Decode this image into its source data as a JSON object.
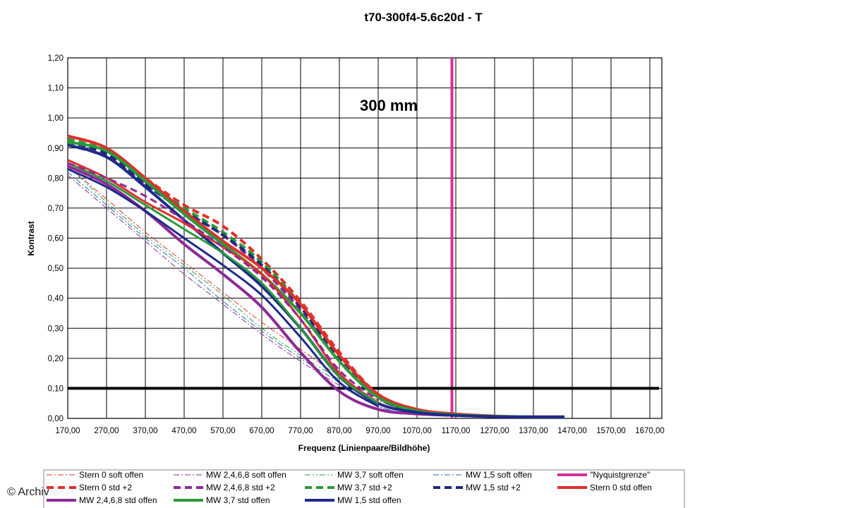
{
  "credit": "© Archiv",
  "chart_data": {
    "type": "line",
    "title": "t70-300f4-5.6c20d - T",
    "xlabel": "Frequenz (Linienpaare/Bildhöhe)",
    "ylabel": "Kontrast",
    "annotation": "300 mm",
    "xlim": [
      170,
      1700
    ],
    "ylim": [
      0,
      1.2
    ],
    "grid": true,
    "legend_position": "bottom",
    "x_ticks": [
      "170,00",
      "270,00",
      "370,00",
      "470,00",
      "570,00",
      "670,00",
      "770,00",
      "870,00",
      "970,00",
      "1070,00",
      "1170,00",
      "1270,00",
      "1370,00",
      "1470,00",
      "1570,00",
      "1670,00"
    ],
    "y_ticks": [
      "0,00",
      "0,10",
      "0,20",
      "0,30",
      "0,40",
      "0,50",
      "0,60",
      "0,70",
      "0,80",
      "0,90",
      "1,00",
      "1,10",
      "1,20"
    ],
    "reference_lines": [
      {
        "name": "\"Nyquistgrenze\"",
        "orientation": "vertical",
        "x": 1160,
        "color": "#d6309a"
      },
      {
        "name": "threshold",
        "orientation": "horizontal",
        "y": 0.1,
        "color": "#000000"
      }
    ],
    "series": [
      {
        "name": "Stern 0 soft offen",
        "color": "#e0302a",
        "style": "dashdot",
        "width": 1,
        "x": [
          170,
          270,
          370,
          470,
          570,
          670,
          770,
          870,
          970,
          1070,
          1170
        ],
        "y": [
          0.84,
          0.73,
          0.62,
          0.52,
          0.42,
          0.32,
          0.23,
          0.14,
          0.06,
          0.02,
          0.01
        ]
      },
      {
        "name": "MW 2,4,6,8 soft offen",
        "color": "#8e2a96",
        "style": "dashdot",
        "width": 1,
        "x": [
          170,
          270,
          370,
          470,
          570,
          670,
          770,
          870,
          970,
          1070
        ],
        "y": [
          0.81,
          0.7,
          0.59,
          0.48,
          0.38,
          0.28,
          0.19,
          0.11,
          0.04,
          0.01
        ]
      },
      {
        "name": "MW 3,7 soft offen",
        "color": "#2a9a3a",
        "style": "dashdot2",
        "width": 1,
        "x": [
          170,
          270,
          370,
          470,
          570,
          670,
          770,
          870,
          970,
          1070
        ],
        "y": [
          0.84,
          0.72,
          0.61,
          0.51,
          0.41,
          0.3,
          0.21,
          0.13,
          0.05,
          0.02
        ]
      },
      {
        "name": "MW 1,5 soft offen",
        "color": "#2a6ab0",
        "style": "dashdot",
        "width": 1,
        "x": [
          170,
          270,
          370,
          470,
          570,
          670,
          770,
          870,
          970,
          1070
        ],
        "y": [
          0.82,
          0.71,
          0.6,
          0.5,
          0.39,
          0.29,
          0.2,
          0.12,
          0.04,
          0.01
        ]
      },
      {
        "name": "\"Nyquistgrenze\"",
        "color": "#d6309a",
        "style": "solid",
        "width": 4,
        "legend_only": true,
        "x": [],
        "y": []
      },
      {
        "name": "Stern 0 std +2",
        "color": "#e0302a",
        "style": "dash",
        "width": 4,
        "x": [
          170,
          270,
          370,
          470,
          570,
          670,
          770,
          870,
          970,
          1070,
          1170
        ],
        "y": [
          0.94,
          0.9,
          0.8,
          0.71,
          0.64,
          0.53,
          0.39,
          0.22,
          0.08,
          0.03,
          0.01
        ]
      },
      {
        "name": "MW 2,4,6,8 std +2",
        "color": "#8e2a96",
        "style": "dash",
        "width": 4,
        "x": [
          170,
          270,
          370,
          470,
          570,
          670,
          770,
          870,
          970,
          1070,
          1170
        ],
        "y": [
          0.91,
          0.87,
          0.78,
          0.69,
          0.61,
          0.5,
          0.36,
          0.19,
          0.07,
          0.02,
          0.01
        ]
      },
      {
        "name": "MW 3,7 std +2",
        "color": "#2a9a3a",
        "style": "dash",
        "width": 4,
        "x": [
          170,
          270,
          370,
          470,
          570,
          670,
          770,
          870,
          970,
          1070,
          1170
        ],
        "y": [
          0.93,
          0.89,
          0.79,
          0.7,
          0.62,
          0.52,
          0.38,
          0.21,
          0.08,
          0.03,
          0.01
        ]
      },
      {
        "name": "MW 1,5 std +2",
        "color": "#1e2a7a",
        "style": "dash",
        "width": 4,
        "x": [
          170,
          270,
          370,
          470,
          570,
          670,
          770,
          870,
          970,
          1070,
          1170
        ],
        "y": [
          0.92,
          0.88,
          0.78,
          0.69,
          0.61,
          0.51,
          0.37,
          0.2,
          0.07,
          0.02,
          0.01
        ]
      },
      {
        "name": "Stern 0 std offen",
        "color": "#e0302a",
        "style": "solid",
        "width": 4,
        "x": [
          170,
          270,
          370,
          470,
          570,
          670,
          770,
          870,
          970,
          1070,
          1170,
          1270,
          1370,
          1450
        ],
        "y": [
          0.94,
          0.9,
          0.8,
          0.69,
          0.59,
          0.5,
          0.38,
          0.21,
          0.08,
          0.03,
          0.015,
          0.008,
          0.005,
          0.005
        ]
      },
      {
        "name": "MW 2,4,6,8 std offen",
        "color": "#8e2a96",
        "style": "solid",
        "width": 4,
        "x": [
          170,
          270,
          370,
          470,
          570,
          670,
          770,
          870,
          970,
          1070,
          1170,
          1270,
          1370,
          1450
        ],
        "y": [
          0.84,
          0.78,
          0.69,
          0.58,
          0.48,
          0.37,
          0.22,
          0.09,
          0.03,
          0.015,
          0.01,
          0.006,
          0.005,
          0.005
        ]
      },
      {
        "name": "MW 3,7 std offen",
        "color": "#2a9a3a",
        "style": "solid",
        "width": 4,
        "x": [
          170,
          270,
          370,
          470,
          570,
          670,
          770,
          870,
          970,
          1070,
          1170,
          1270,
          1370,
          1450
        ],
        "y": [
          0.92,
          0.89,
          0.79,
          0.68,
          0.58,
          0.48,
          0.35,
          0.19,
          0.07,
          0.025,
          0.012,
          0.007,
          0.005,
          0.005
        ]
      },
      {
        "name": "MW 1,5 std offen",
        "color": "#1e2a8a",
        "style": "solid",
        "width": 4,
        "x": [
          170,
          270,
          370,
          470,
          570,
          670,
          770,
          870,
          970,
          1070,
          1170,
          1270,
          1370,
          1450
        ],
        "y": [
          0.91,
          0.87,
          0.77,
          0.66,
          0.55,
          0.44,
          0.3,
          0.14,
          0.05,
          0.02,
          0.01,
          0.006,
          0.005,
          0.005
        ]
      },
      {
        "name": "Stern 0 std offen (secondary)",
        "color": "#e0302a",
        "style": "solid",
        "width": 3,
        "legend_only": false,
        "hide_in_legend": true,
        "x": [
          170,
          270,
          370,
          470,
          570,
          670,
          770,
          870,
          970
        ],
        "y": [
          0.86,
          0.8,
          0.72,
          0.65,
          0.57,
          0.48,
          0.33,
          0.15,
          0.05
        ]
      },
      {
        "name": "MW 3,7 std offen (secondary)",
        "color": "#2a9a3a",
        "style": "solid",
        "width": 3,
        "hide_in_legend": true,
        "x": [
          170,
          270,
          370,
          470,
          570,
          670,
          770,
          870,
          970
        ],
        "y": [
          0.85,
          0.79,
          0.71,
          0.63,
          0.55,
          0.45,
          0.3,
          0.14,
          0.05
        ]
      },
      {
        "name": "MW 1,5 std offen (secondary)",
        "color": "#1e2a8a",
        "style": "solid",
        "width": 3,
        "hide_in_legend": true,
        "x": [
          170,
          270,
          370,
          470,
          570,
          670,
          770,
          870,
          970
        ],
        "y": [
          0.83,
          0.77,
          0.69,
          0.6,
          0.51,
          0.41,
          0.27,
          0.12,
          0.04
        ]
      },
      {
        "name": "MW 2,4,6,8 std +2 (secondary)",
        "color": "#8e2a96",
        "style": "dash",
        "width": 3,
        "hide_in_legend": true,
        "x": [
          170,
          270,
          370,
          470,
          570,
          670,
          770,
          870,
          970
        ],
        "y": [
          0.85,
          0.8,
          0.74,
          0.66,
          0.57,
          0.47,
          0.33,
          0.16,
          0.06
        ]
      }
    ],
    "legend": [
      "Stern 0 soft offen",
      "MW 2,4,6,8 soft offen",
      "MW 3,7 soft offen",
      "MW 1,5 soft offen",
      "\"Nyquistgrenze\"",
      "Stern 0 std +2",
      "MW 2,4,6,8 std +2",
      "MW 3,7 std +2",
      "MW 1,5 std +2",
      "Stern 0 std offen",
      "MW 2,4,6,8 std offen",
      "MW 3,7 std offen",
      "MW 1,5 std offen"
    ]
  }
}
